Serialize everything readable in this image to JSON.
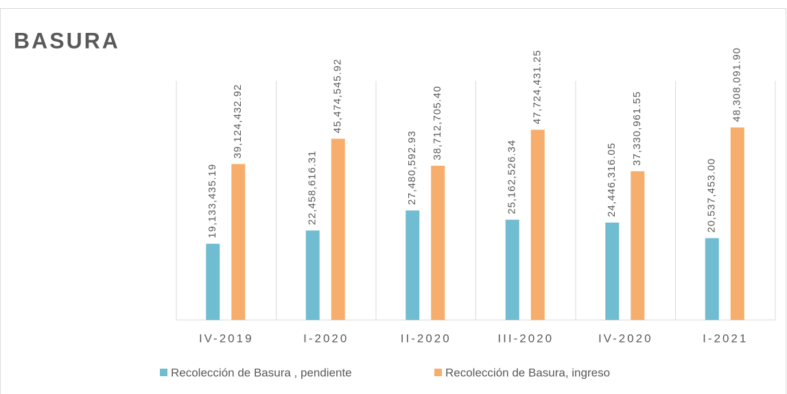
{
  "chart_data": {
    "type": "bar",
    "title": "BASURA",
    "categories": [
      "IV-2019",
      "I-2020",
      "II-2020",
      "III-2020",
      "IV-2020",
      "I-2021"
    ],
    "series": [
      {
        "name": "Recolección de Basura , pendiente",
        "color": "#70bdd1",
        "values": [
          19133435.19,
          22458616.31,
          27480592.93,
          25162526.34,
          24446316.05,
          20537453.0
        ],
        "value_labels": [
          "19,133,435.19",
          "22,458,616.31",
          "27,480,592.93",
          "25,162,526.34",
          "24,446,316.05",
          "20,537,453.00"
        ]
      },
      {
        "name": "Recolección de Basura, ingreso",
        "color": "#f7ad6b",
        "values": [
          39124432.92,
          45474545.92,
          38712705.4,
          47724431.25,
          37330961.55,
          48308091.9
        ],
        "value_labels": [
          "39,124,432.92",
          "45,474,545.92",
          "38,712,705.40",
          "47,724,431.25",
          "37,330,961.55",
          "48,308,091.90"
        ]
      }
    ],
    "ylim": [
      0,
      60000000
    ]
  }
}
